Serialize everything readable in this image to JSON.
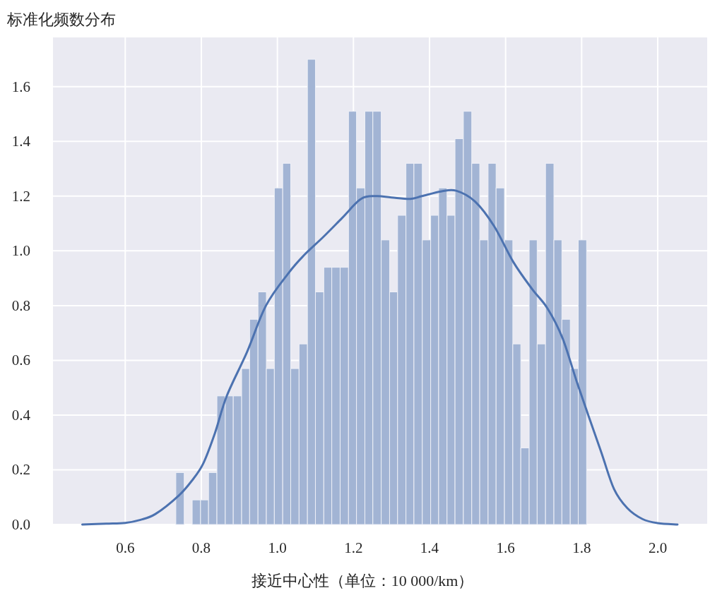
{
  "chart_data": {
    "type": "histogram",
    "ylabel": "标准化频数分布",
    "xlabel": "接近中心性（单位：10 000/km）",
    "xlim": [
      0.41,
      2.13
    ],
    "ylim": [
      0,
      1.78
    ],
    "xticks": [
      0.6,
      0.8,
      {
        "value": 1,
        "label": "1.0"
      },
      1.2,
      1.4,
      1.6,
      1.8,
      {
        "value": 2,
        "label": "2.0"
      }
    ],
    "yticks": [
      {
        "value": 0,
        "label": "0.0"
      },
      0.2,
      0.4,
      0.6,
      0.8,
      {
        "value": 1,
        "label": "1.0"
      },
      1.2,
      1.4,
      1.6
    ],
    "grid": true,
    "series": [
      {
        "color": "#a2b4d4",
        "bins": [
          0.733,
          0.755,
          0.776,
          0.798,
          0.819,
          0.841,
          0.863,
          0.884,
          0.906,
          0.927,
          0.949,
          0.971,
          0.992,
          1.014,
          1.035,
          1.057,
          1.079,
          1.1,
          1.122,
          1.143,
          1.165,
          1.187,
          1.208,
          1.23,
          1.251,
          1.273,
          1.295,
          1.316,
          1.338,
          1.359,
          1.381,
          1.403,
          1.424,
          1.446,
          1.467,
          1.489,
          1.511,
          1.532,
          1.554,
          1.575,
          1.597,
          1.619,
          1.64,
          1.662,
          1.683,
          1.705,
          1.727,
          1.748,
          1.77,
          1.791,
          1.813
        ],
        "values": [
          0.19,
          0,
          0.09,
          0.09,
          0.19,
          0.47,
          0.47,
          0.47,
          0.57,
          0.75,
          0.85,
          0.57,
          1.23,
          1.32,
          0.57,
          0.66,
          1.7,
          0.85,
          0.94,
          0.94,
          0.94,
          1.51,
          1.23,
          1.51,
          1.51,
          1.04,
          0.85,
          1.13,
          1.32,
          1.32,
          1.04,
          1.13,
          1.23,
          1.13,
          1.41,
          1.51,
          1.32,
          1.04,
          1.32,
          1.23,
          1.04,
          0.66,
          0.28,
          1.04,
          0.66,
          1.32,
          1.04,
          0.75,
          0.57,
          1.04
        ]
      },
      {
        "type": "line",
        "color": "#4c72b0",
        "x": [
          0.487,
          0.55,
          0.6,
          0.64,
          0.68,
          0.74,
          0.775,
          0.805,
          0.836,
          0.867,
          0.92,
          0.97,
          1.03,
          1.07,
          1.12,
          1.17,
          1.22,
          1.26,
          1.3,
          1.35,
          1.38,
          1.43,
          1.47,
          1.52,
          1.57,
          1.62,
          1.67,
          1.71,
          1.75,
          1.79,
          1.85,
          1.885,
          1.92,
          1.96,
          2.0,
          2.052
        ],
        "values": [
          0,
          0.003,
          0.006,
          0.017,
          0.039,
          0.105,
          0.16,
          0.223,
          0.335,
          0.47,
          0.63,
          0.8,
          0.92,
          0.984,
          1.05,
          1.12,
          1.19,
          1.2,
          1.195,
          1.19,
          1.2,
          1.217,
          1.22,
          1.18,
          1.09,
          0.96,
          0.86,
          0.79,
          0.68,
          0.51,
          0.27,
          0.13,
          0.06,
          0.02,
          0.005,
          0
        ]
      }
    ]
  }
}
